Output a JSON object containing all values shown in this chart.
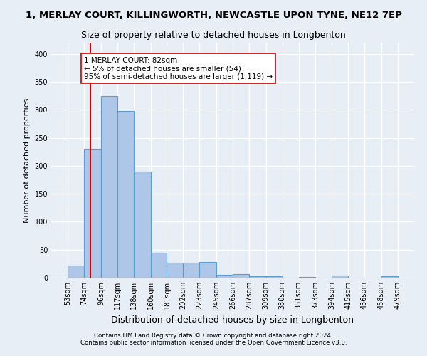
{
  "title": "1, MERLAY COURT, KILLINGWORTH, NEWCASTLE UPON TYNE, NE12 7EP",
  "subtitle": "Size of property relative to detached houses in Longbenton",
  "xlabel": "Distribution of detached houses by size in Longbenton",
  "ylabel": "Number of detached properties",
  "bin_edges": [
    53,
    74,
    96,
    117,
    138,
    160,
    181,
    202,
    223,
    245,
    266,
    287,
    309,
    330,
    351,
    373,
    394,
    415,
    436,
    458,
    479
  ],
  "bin_labels": [
    "53sqm",
    "74sqm",
    "96sqm",
    "117sqm",
    "138sqm",
    "160sqm",
    "181sqm",
    "202sqm",
    "223sqm",
    "245sqm",
    "266sqm",
    "287sqm",
    "309sqm",
    "330sqm",
    "351sqm",
    "373sqm",
    "394sqm",
    "415sqm",
    "436sqm",
    "458sqm",
    "479sqm"
  ],
  "bar_heights": [
    22,
    230,
    325,
    298,
    190,
    45,
    27,
    27,
    28,
    5,
    6,
    3,
    3,
    0,
    1,
    0,
    4,
    0,
    0,
    2
  ],
  "bar_color": "#aec6e8",
  "bar_edge_color": "#5a9fd4",
  "property_size": 82,
  "vline_color": "#cc0000",
  "annotation_text": "1 MERLAY COURT: 82sqm\n← 5% of detached houses are smaller (54)\n95% of semi-detached houses are larger (1,119) →",
  "annotation_box_color": "#ffffff",
  "annotation_box_edge": "#cc0000",
  "ylim": [
    0,
    420
  ],
  "footer1": "Contains HM Land Registry data © Crown copyright and database right 2024.",
  "footer2": "Contains public sector information licensed under the Open Government Licence v3.0.",
  "background_color": "#e8eef5",
  "plot_background": "#e8eef5",
  "grid_color": "#ffffff",
  "title_fontsize": 9.5,
  "subtitle_fontsize": 9
}
